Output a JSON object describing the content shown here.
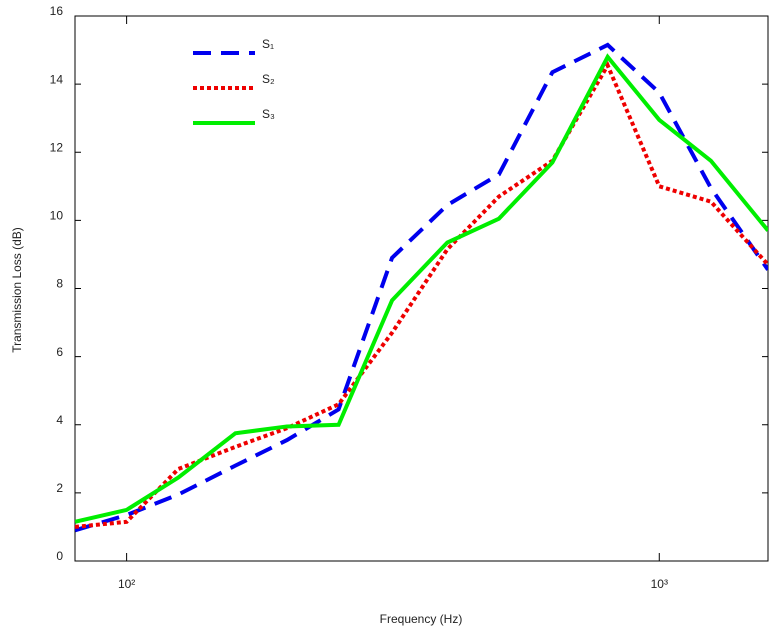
{
  "chart_data": {
    "type": "line",
    "x_label": "Frequency (Hz)",
    "y_label": "Transmission Loss (dB)",
    "x": [
      80,
      100,
      125,
      160,
      200,
      250,
      315,
      400,
      500,
      630,
      800,
      1000,
      1250,
      1600
    ],
    "xlim": [
      80,
      1600
    ],
    "x_scale": "log",
    "xticks": [
      {
        "value": 100,
        "label": "10²"
      },
      {
        "value": 1000,
        "label": "10³"
      }
    ],
    "ylim": [
      0,
      16
    ],
    "yticks": [
      0,
      2,
      4,
      6,
      8,
      10,
      12,
      14,
      16
    ],
    "legend": "upper left",
    "series": [
      {
        "name": "S₁",
        "color": "#0000ee",
        "line_style": "dashed",
        "values": [
          0.9,
          1.35,
          1.95,
          2.8,
          3.55,
          4.45,
          8.9,
          10.45,
          11.35,
          14.35,
          15.15,
          13.75,
          10.95,
          8.55
        ]
      },
      {
        "name": "S₂",
        "color": "#ee0000",
        "line_style": "dotted",
        "values": [
          1.0,
          1.15,
          2.7,
          3.35,
          3.9,
          4.6,
          6.7,
          9.15,
          10.7,
          11.75,
          14.55,
          11.0,
          10.55,
          8.7
        ]
      },
      {
        "name": "S₃",
        "color": "#00ee00",
        "line_style": "solid",
        "values": [
          1.15,
          1.5,
          2.45,
          3.75,
          3.95,
          4.0,
          7.65,
          9.35,
          10.05,
          11.7,
          14.8,
          12.95,
          11.75,
          9.7
        ]
      }
    ]
  }
}
